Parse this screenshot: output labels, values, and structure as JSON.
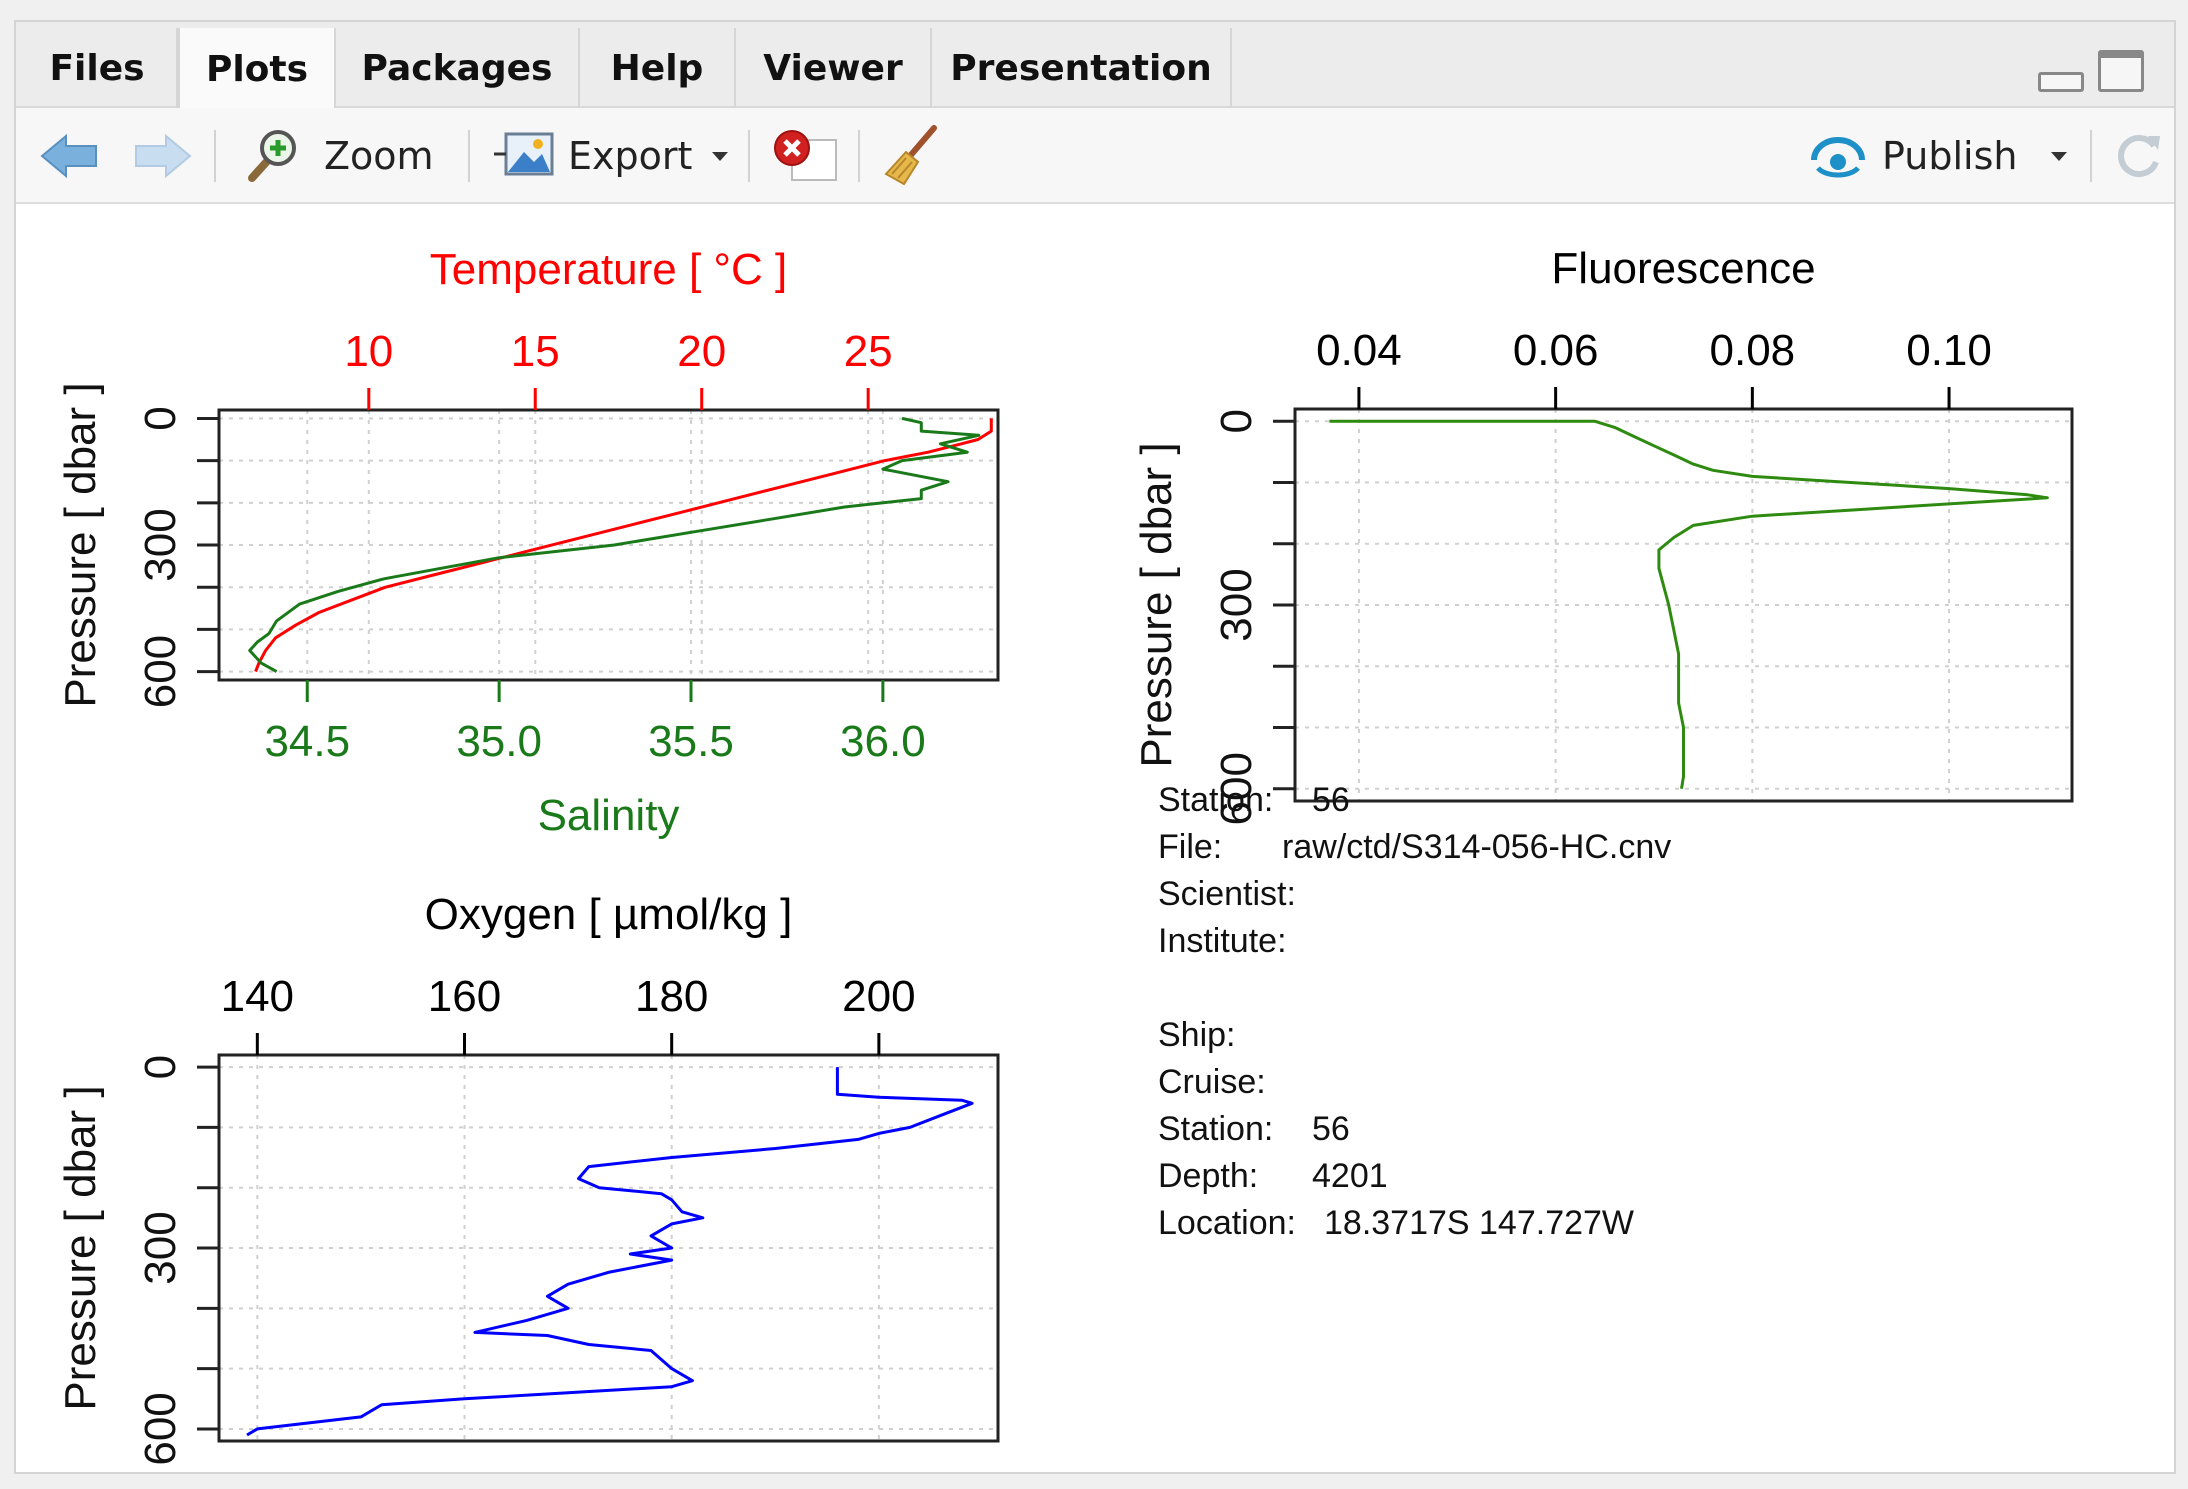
{
  "tabs": [
    {
      "label": "Files"
    },
    {
      "label": "Plots"
    },
    {
      "label": "Packages"
    },
    {
      "label": "Help"
    },
    {
      "label": "Viewer"
    },
    {
      "label": "Presentation"
    }
  ],
  "active_tab": "Plots",
  "toolbar": {
    "zoom_label": "Zoom",
    "export_label": "Export",
    "publish_label": "Publish"
  },
  "colors": {
    "temperature": "#ff0000",
    "salinity": "#1a7a1a",
    "fluorescence": "#2e8b10",
    "oxygen": "#0000ff",
    "accent": "#1e90c8"
  },
  "chart_data": [
    {
      "type": "line",
      "ylabel": "Pressure [ dbar ]",
      "yticks": [
        0,
        300,
        600
      ],
      "ylim": [
        620,
        -20
      ],
      "reversed_y": true,
      "grid": true,
      "axes": {
        "top": {
          "label": "Temperature [ °C ]",
          "ticks": [
            10,
            15,
            20,
            25
          ],
          "lim": [
            5.5,
            28.9
          ],
          "color": "#ff0000"
        },
        "bottom": {
          "label": "Salinity",
          "ticks": [
            "34.5",
            "35.0",
            "35.5",
            "36.0"
          ],
          "lim": [
            34.27,
            36.3
          ],
          "color": "#1a7a1a"
        }
      },
      "series": [
        {
          "axis": "top",
          "color": "#ff0000",
          "points": [
            [
              28.7,
              0
            ],
            [
              28.7,
              30
            ],
            [
              28.3,
              50
            ],
            [
              27.8,
              60
            ],
            [
              26.8,
              80
            ],
            [
              25.5,
              100
            ],
            [
              24.0,
              130
            ],
            [
              22.5,
              160
            ],
            [
              21.0,
              190
            ],
            [
              19.5,
              220
            ],
            [
              18.0,
              250
            ],
            [
              16.5,
              280
            ],
            [
              15.0,
              310
            ],
            [
              13.5,
              340
            ],
            [
              12.0,
              370
            ],
            [
              10.5,
              400
            ],
            [
              9.5,
              430
            ],
            [
              8.5,
              460
            ],
            [
              7.8,
              490
            ],
            [
              7.2,
              520
            ],
            [
              6.9,
              550
            ],
            [
              6.7,
              580
            ],
            [
              6.6,
              600
            ]
          ]
        },
        {
          "axis": "bottom",
          "color": "#1a7a1a",
          "points": [
            [
              36.05,
              0
            ],
            [
              36.1,
              10
            ],
            [
              36.1,
              30
            ],
            [
              36.25,
              40
            ],
            [
              36.15,
              60
            ],
            [
              36.22,
              80
            ],
            [
              36.05,
              100
            ],
            [
              36.0,
              120
            ],
            [
              36.17,
              150
            ],
            [
              36.1,
              170
            ],
            [
              36.1,
              190
            ],
            [
              35.9,
              210
            ],
            [
              35.7,
              240
            ],
            [
              35.5,
              270
            ],
            [
              35.3,
              300
            ],
            [
              35.0,
              330
            ],
            [
              34.85,
              355
            ],
            [
              34.7,
              380
            ],
            [
              34.58,
              410
            ],
            [
              34.48,
              440
            ],
            [
              34.42,
              480
            ],
            [
              34.4,
              510
            ],
            [
              34.37,
              530
            ],
            [
              34.35,
              550
            ],
            [
              34.38,
              580
            ],
            [
              34.42,
              600
            ]
          ]
        }
      ]
    },
    {
      "type": "line",
      "ylabel": "Pressure [ dbar ]",
      "yticks": [
        0,
        300,
        600
      ],
      "ylim": [
        620,
        -20
      ],
      "reversed_y": true,
      "grid": true,
      "axes": {
        "top": {
          "label": "Fluorescence",
          "ticks": [
            "0.04",
            "0.06",
            "0.08",
            "0.10"
          ],
          "lim": [
            0.0335,
            0.1125
          ],
          "color": "#000000"
        }
      },
      "series": [
        {
          "axis": "top",
          "color": "#2e8b10",
          "points": [
            [
              0.037,
              0
            ],
            [
              0.064,
              0
            ],
            [
              0.066,
              10
            ],
            [
              0.068,
              25
            ],
            [
              0.07,
              40
            ],
            [
              0.072,
              55
            ],
            [
              0.074,
              70
            ],
            [
              0.076,
              80
            ],
            [
              0.08,
              90
            ],
            [
              0.09,
              100
            ],
            [
              0.1,
              110
            ],
            [
              0.108,
              120
            ],
            [
              0.11,
              125
            ],
            [
              0.1,
              135
            ],
            [
              0.09,
              145
            ],
            [
              0.08,
              155
            ],
            [
              0.074,
              170
            ],
            [
              0.072,
              190
            ],
            [
              0.0705,
              210
            ],
            [
              0.0705,
              240
            ],
            [
              0.071,
              270
            ],
            [
              0.0715,
              300
            ],
            [
              0.072,
              340
            ],
            [
              0.0725,
              380
            ],
            [
              0.0725,
              420
            ],
            [
              0.0725,
              460
            ],
            [
              0.073,
              500
            ],
            [
              0.073,
              540
            ],
            [
              0.073,
              580
            ],
            [
              0.0728,
              600
            ]
          ]
        }
      ]
    },
    {
      "type": "line",
      "ylabel": "Pressure [ dbar ]",
      "yticks": [
        0,
        300,
        600
      ],
      "ylim": [
        620,
        -20
      ],
      "reversed_y": true,
      "grid": true,
      "axes": {
        "top": {
          "label": "Oxygen [ µmol/kg ]",
          "ticks": [
            140,
            160,
            180,
            200
          ],
          "lim": [
            136.3,
            211.5
          ],
          "color": "#000000"
        }
      },
      "series": [
        {
          "axis": "top",
          "color": "#0000ff",
          "points": [
            [
              196,
              0
            ],
            [
              196,
              45
            ],
            [
              200,
              50
            ],
            [
              208,
              55
            ],
            [
              209,
              60
            ],
            [
              206,
              80
            ],
            [
              203,
              100
            ],
            [
              200,
              110
            ],
            [
              198,
              120
            ],
            [
              190,
              135
            ],
            [
              180,
              150
            ],
            [
              172,
              165
            ],
            [
              171,
              185
            ],
            [
              173,
              200
            ],
            [
              179,
              210
            ],
            [
              180,
              220
            ],
            [
              181,
              240
            ],
            [
              183,
              250
            ],
            [
              180,
              260
            ],
            [
              178,
              280
            ],
            [
              180,
              300
            ],
            [
              176,
              310
            ],
            [
              180,
              320
            ],
            [
              174,
              340
            ],
            [
              170,
              360
            ],
            [
              168,
              380
            ],
            [
              170,
              400
            ],
            [
              166,
              420
            ],
            [
              161,
              440
            ],
            [
              168,
              445
            ],
            [
              172,
              460
            ],
            [
              178,
              470
            ],
            [
              180,
              500
            ],
            [
              182,
              520
            ],
            [
              180,
              530
            ],
            [
              170,
              540
            ],
            [
              160,
              550
            ],
            [
              152,
              560
            ],
            [
              150,
              580
            ],
            [
              145,
              590
            ],
            [
              140,
              600
            ],
            [
              139,
              610
            ]
          ]
        }
      ]
    }
  ],
  "station_info": [
    {
      "label": "Station:",
      "value": "56"
    },
    {
      "label": "File:",
      "value": "raw/ctd/S314-056-HC.cnv"
    },
    {
      "label": "Scientist:",
      "value": ""
    },
    {
      "label": "Institute:",
      "value": ""
    },
    {
      "label": "Ship:",
      "value": ""
    },
    {
      "label": "Cruise:",
      "value": ""
    },
    {
      "label": "Station:",
      "value": "56"
    },
    {
      "label": "Depth:",
      "value": "4201"
    },
    {
      "label": "Location:",
      "value": "18.3717S 147.727W"
    }
  ]
}
